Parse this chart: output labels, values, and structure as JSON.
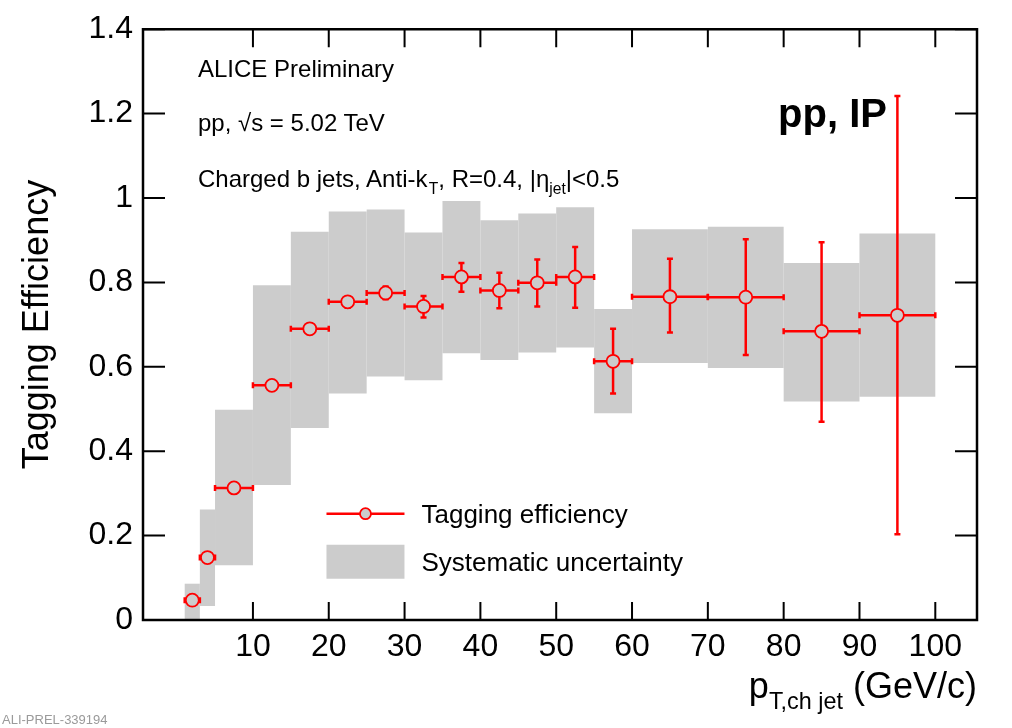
{
  "chart_data": {
    "type": "scatter",
    "xlabel": "p$_{T,ch jet}$ (GeV/c)",
    "ylabel": "Tagging Efficiency",
    "annotations": [
      "ALICE Preliminary",
      "pp, √s = 5.02 TeV",
      "Charged b jets, Anti-k$_{T}$, R=0.4, |η$_{jet}$|<0.5",
      "pp, IP",
      "ALI-PREL-339194"
    ],
    "xlim": [
      1,
      100
    ],
    "xticks": [
      10,
      20,
      30,
      40,
      50,
      60,
      70,
      80,
      90,
      100
    ],
    "ylim": [
      0,
      1.4
    ],
    "yticks": [
      0,
      0.2,
      0.4,
      0.6,
      0.8,
      1,
      1.2,
      1.4
    ],
    "grid": false,
    "legend": "bottom",
    "marker": "circle",
    "series": [
      {
        "name": "Systematic uncertainty",
        "type": "bar",
        "color": "#cccccc",
        "x": [
          2,
          4,
          7.5,
          12.5,
          17.5,
          22.5,
          27.5,
          32.5,
          37.5,
          42.5,
          47.5,
          52.5,
          57.5,
          65,
          75,
          85,
          95
        ],
        "base": [
          0,
          0.033,
          0.13,
          0.32,
          0.455,
          0.537,
          0.577,
          0.568,
          0.632,
          0.616,
          0.634,
          0.646,
          0.49,
          0.609,
          0.597,
          0.518,
          0.529
        ],
        "values": [
          0.086,
          0.229,
          0.368,
          0.473,
          0.465,
          0.431,
          0.396,
          0.35,
          0.361,
          0.331,
          0.329,
          0.332,
          0.247,
          0.317,
          0.335,
          0.328,
          0.387
        ]
      },
      {
        "name": "Tagging efficiency",
        "color": "#ff0000",
        "x": [
          2,
          4,
          7.5,
          12.5,
          17.5,
          22.5,
          27.5,
          32.5,
          37.5,
          42.5,
          47.5,
          52.5,
          57.5,
          65,
          75,
          85,
          95
        ],
        "values": [
          0.047,
          0.148,
          0.313,
          0.556,
          0.69,
          0.754,
          0.775,
          0.743,
          0.813,
          0.781,
          0.799,
          0.813,
          0.613,
          0.766,
          0.765,
          0.684,
          0.722
        ],
        "errors": [
          null,
          null,
          null,
          null,
          null,
          [
            0.74,
            0.765
          ],
          [
            0.76,
            0.79
          ],
          [
            0.717,
            0.768
          ],
          [
            0.778,
            0.846
          ],
          [
            0.739,
            0.823
          ],
          [
            0.743,
            0.854
          ],
          [
            0.74,
            0.884
          ],
          [
            0.537,
            0.69
          ],
          [
            0.681,
            0.856
          ],
          [
            0.628,
            0.902
          ],
          [
            0.47,
            0.895
          ],
          [
            0.203,
            1.242
          ]
        ],
        "xerrors": [
          [
            1,
            3
          ],
          [
            3,
            5
          ],
          [
            5,
            10
          ],
          [
            10,
            15
          ],
          [
            15,
            20
          ],
          [
            20,
            25
          ],
          [
            25,
            30
          ],
          [
            30,
            35
          ],
          [
            35,
            40
          ],
          [
            40,
            45
          ],
          [
            45,
            50
          ],
          [
            50,
            55
          ],
          [
            55,
            60
          ],
          [
            60,
            70
          ],
          [
            70,
            80
          ],
          [
            80,
            90
          ],
          [
            90,
            100
          ]
        ]
      }
    ]
  }
}
